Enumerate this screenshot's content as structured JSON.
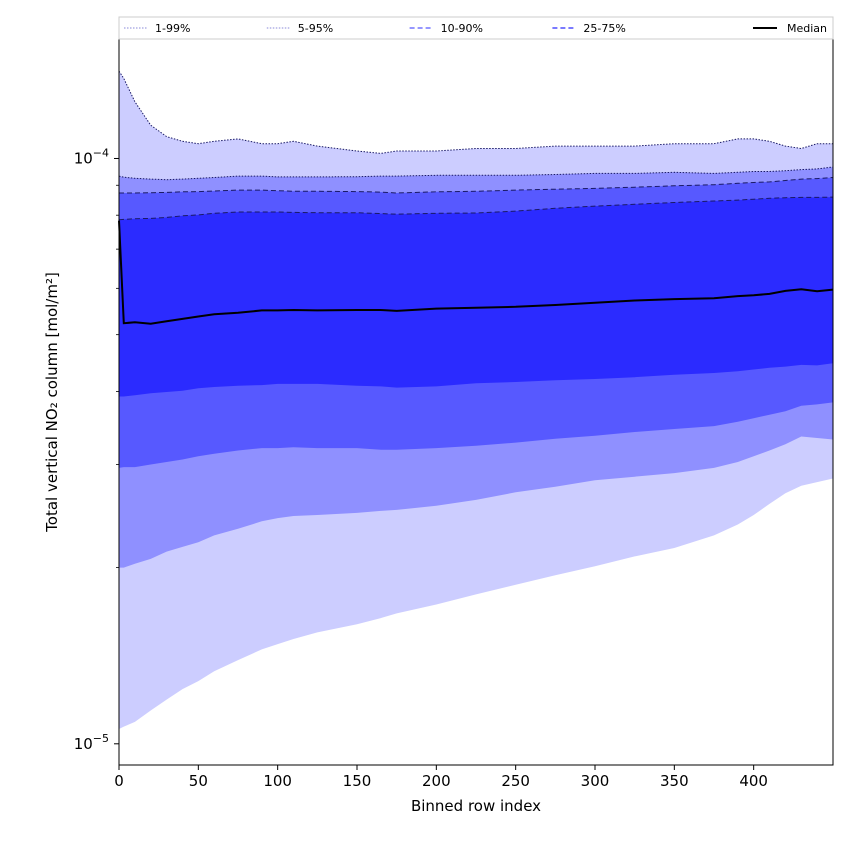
{
  "chart_data": {
    "type": "area",
    "title": "",
    "xlabel": "Binned row index",
    "ylabel": "Total vertical NO₂ column [mol/m²]",
    "xlim": [
      0,
      450
    ],
    "ylim": [
      9.2e-06,
      0.00016
    ],
    "yscale": "log",
    "grid": false,
    "legend_position": "top",
    "x_ticks": [
      0,
      50,
      100,
      150,
      200,
      250,
      300,
      350,
      400
    ],
    "x_tick_labels": [
      "0",
      "50",
      "100",
      "150",
      "200",
      "250",
      "300",
      "350",
      "400"
    ],
    "y_ticks": [
      1e-05,
      0.0001
    ],
    "y_tick_labels": [
      {
        "base": "10",
        "exp": "−5"
      },
      {
        "base": "10",
        "exp": "−4"
      }
    ],
    "x": [
      0,
      3,
      10,
      20,
      30,
      40,
      50,
      60,
      75,
      90,
      100,
      110,
      125,
      150,
      165,
      175,
      200,
      225,
      250,
      275,
      300,
      325,
      350,
      375,
      390,
      400,
      410,
      420,
      430,
      440,
      450
    ],
    "series": [
      {
        "name": "1-99%",
        "color": "#cccdff",
        "linestyle": "dotted",
        "upper": [
          0.000141,
          0.000137,
          0.000125,
          0.000114,
          0.000109,
          0.000107,
          0.000106,
          0.000107,
          0.000108,
          0.000106,
          0.000106,
          0.000107,
          0.000105,
          0.000103,
          0.000102,
          0.000103,
          0.000103,
          0.000104,
          0.000104,
          0.000105,
          0.000105,
          0.000105,
          0.000106,
          0.000106,
          0.000108,
          0.000108,
          0.000107,
          0.000105,
          0.000104,
          0.000106,
          0.000106
        ],
        "lower": [
          1.06e-05,
          1.07e-05,
          1.09e-05,
          1.14e-05,
          1.19e-05,
          1.24e-05,
          1.28e-05,
          1.33e-05,
          1.39e-05,
          1.45e-05,
          1.48e-05,
          1.51e-05,
          1.55e-05,
          1.6e-05,
          1.64e-05,
          1.67e-05,
          1.73e-05,
          1.8e-05,
          1.87e-05,
          1.94e-05,
          2.01e-05,
          2.09e-05,
          2.16e-05,
          2.27e-05,
          2.37e-05,
          2.46e-05,
          2.57e-05,
          2.68e-05,
          2.76e-05,
          2.8e-05,
          2.84e-05
        ]
      },
      {
        "name": "5-95%",
        "color": "#8f90ff",
        "linestyle": "dotted",
        "upper": [
          9.33e-05,
          9.29e-05,
          9.25e-05,
          9.22e-05,
          9.2e-05,
          9.22e-05,
          9.25e-05,
          9.28e-05,
          9.33e-05,
          9.33e-05,
          9.3e-05,
          9.3e-05,
          9.3e-05,
          9.31e-05,
          9.33e-05,
          9.33e-05,
          9.36e-05,
          9.36e-05,
          9.36e-05,
          9.39e-05,
          9.43e-05,
          9.43e-05,
          9.47e-05,
          9.43e-05,
          9.47e-05,
          9.5e-05,
          9.5e-05,
          9.53e-05,
          9.57e-05,
          9.6e-05,
          9.67e-05
        ],
        "lower": [
          2e-05,
          2e-05,
          2.03e-05,
          2.07e-05,
          2.13e-05,
          2.17e-05,
          2.21e-05,
          2.27e-05,
          2.33e-05,
          2.4e-05,
          2.43e-05,
          2.45e-05,
          2.46e-05,
          2.48e-05,
          2.5e-05,
          2.51e-05,
          2.55e-05,
          2.61e-05,
          2.69e-05,
          2.75e-05,
          2.82e-05,
          2.86e-05,
          2.9e-05,
          2.96e-05,
          3.03e-05,
          3.1e-05,
          3.17e-05,
          3.25e-05,
          3.35e-05,
          3.33e-05,
          3.31e-05
        ]
      },
      {
        "name": "10-90%",
        "color": "#5759ff",
        "linestyle": "dashed",
        "upper": [
          8.73e-05,
          8.73e-05,
          8.73e-05,
          8.74e-05,
          8.75e-05,
          8.77e-05,
          8.78e-05,
          8.8e-05,
          8.83e-05,
          8.83e-05,
          8.81e-05,
          8.79e-05,
          8.79e-05,
          8.78e-05,
          8.76e-05,
          8.73e-05,
          8.77e-05,
          8.79e-05,
          8.83e-05,
          8.86e-05,
          8.89e-05,
          8.93e-05,
          8.98e-05,
          9.02e-05,
          9.07e-05,
          9.1e-05,
          9.12e-05,
          9.17e-05,
          9.22e-05,
          9.24e-05,
          9.28e-05
        ],
        "lower": [
          2.96e-05,
          2.97e-05,
          2.97e-05,
          3e-05,
          3.03e-05,
          3.06e-05,
          3.1e-05,
          3.13e-05,
          3.17e-05,
          3.2e-05,
          3.2e-05,
          3.21e-05,
          3.2e-05,
          3.2e-05,
          3.18e-05,
          3.18e-05,
          3.2e-05,
          3.23e-05,
          3.27e-05,
          3.32e-05,
          3.36e-05,
          3.41e-05,
          3.45e-05,
          3.49e-05,
          3.55e-05,
          3.6e-05,
          3.65e-05,
          3.7e-05,
          3.78e-05,
          3.8e-05,
          3.83e-05
        ]
      },
      {
        "name": "25-75%",
        "color": "#2b2bff",
        "linestyle": "dashed",
        "upper": [
          7.86e-05,
          7.87e-05,
          7.89e-05,
          7.9e-05,
          7.93e-05,
          7.98e-05,
          8.01e-05,
          8.06e-05,
          8.1e-05,
          8.1e-05,
          8.1e-05,
          8.09e-05,
          8.08e-05,
          8.08e-05,
          8.05e-05,
          8.03e-05,
          8.06e-05,
          8.07e-05,
          8.13e-05,
          8.22e-05,
          8.29e-05,
          8.35e-05,
          8.41e-05,
          8.46e-05,
          8.49e-05,
          8.52e-05,
          8.55e-05,
          8.57e-05,
          8.58e-05,
          8.58e-05,
          8.59e-05
        ],
        "lower": [
          3.92e-05,
          3.92e-05,
          3.94e-05,
          3.97e-05,
          3.99e-05,
          4.01e-05,
          4.05e-05,
          4.07e-05,
          4.09e-05,
          4.1e-05,
          4.12e-05,
          4.12e-05,
          4.12e-05,
          4.09e-05,
          4.08e-05,
          4.06e-05,
          4.08e-05,
          4.13e-05,
          4.15e-05,
          4.18e-05,
          4.2e-05,
          4.23e-05,
          4.27e-05,
          4.3e-05,
          4.33e-05,
          4.36e-05,
          4.39e-05,
          4.41e-05,
          4.44e-05,
          4.43e-05,
          4.47e-05
        ]
      },
      {
        "name": "Median",
        "color": "#000000",
        "linestyle": "solid",
        "values": [
          7.83e-05,
          5.23e-05,
          5.25e-05,
          5.22e-05,
          5.27e-05,
          5.32e-05,
          5.37e-05,
          5.42e-05,
          5.45e-05,
          5.5e-05,
          5.5e-05,
          5.51e-05,
          5.5e-05,
          5.51e-05,
          5.51e-05,
          5.49e-05,
          5.54e-05,
          5.56e-05,
          5.58e-05,
          5.62e-05,
          5.67e-05,
          5.72e-05,
          5.75e-05,
          5.77e-05,
          5.82e-05,
          5.84e-05,
          5.87e-05,
          5.94e-05,
          5.98e-05,
          5.93e-05,
          5.97e-05
        ]
      }
    ]
  }
}
